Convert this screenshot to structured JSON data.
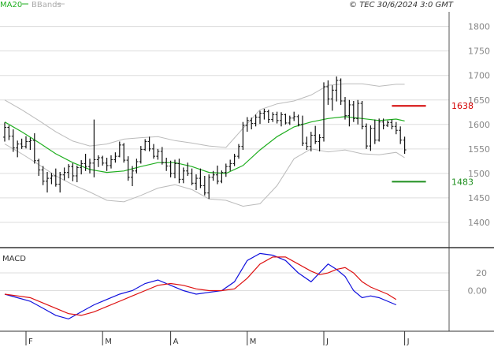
{
  "header": {
    "ma_label": "MA20",
    "bbands_label": "BBands",
    "copyright": "© TEC 30/6/2024 3:0 GMT"
  },
  "macd_label": "MACD",
  "colors": {
    "price": "#111111",
    "ma": "#1fae1f",
    "bbands": "#bbbbbb",
    "resistance": "#d40000",
    "support": "#1f8f1f",
    "macd": "#1010dd",
    "signal": "#dd1010",
    "grid": "#dddddd"
  },
  "chart_data": [
    {
      "type": "ohlc",
      "name": "price-panel",
      "ylim": [
        1350,
        1830
      ],
      "yticks": [
        1400,
        1450,
        1500,
        1550,
        1600,
        1650,
        1700,
        1750,
        1800
      ],
      "ytick_labels": [
        "1400",
        "1450",
        "1500",
        "1550",
        "1600",
        "1650",
        "1700",
        "1750",
        "1800"
      ],
      "xlim": [
        0,
        100
      ],
      "xticks": [
        {
          "x": 5,
          "label": "F"
        },
        {
          "x": 23,
          "label": "M"
        },
        {
          "x": 39,
          "label": "A"
        },
        {
          "x": 57,
          "label": "M"
        },
        {
          "x": 75,
          "label": "J"
        },
        {
          "x": 94,
          "label": "J"
        }
      ],
      "levels": [
        {
          "name": "resistance",
          "value": 1638,
          "label": "1638",
          "x_start": 91,
          "x_end": 99
        },
        {
          "name": "support",
          "value": 1483,
          "label": "1483",
          "x_start": 91,
          "x_end": 99
        }
      ],
      "bars": [
        [
          0,
          1574,
          1604,
          1565,
          1594
        ],
        [
          1,
          1594,
          1598,
          1568,
          1576
        ],
        [
          2,
          1576,
          1590,
          1544,
          1552
        ],
        [
          3,
          1552,
          1567,
          1533,
          1560
        ],
        [
          4,
          1560,
          1571,
          1550,
          1555
        ],
        [
          5,
          1555,
          1576,
          1551,
          1565
        ],
        [
          6,
          1565,
          1573,
          1548,
          1567
        ],
        [
          7,
          1567,
          1582,
          1520,
          1526
        ],
        [
          8,
          1526,
          1530,
          1495,
          1507
        ],
        [
          9,
          1507,
          1515,
          1476,
          1484
        ],
        [
          10,
          1484,
          1503,
          1461,
          1490
        ],
        [
          11,
          1490,
          1501,
          1478,
          1495
        ],
        [
          12,
          1495,
          1510,
          1473,
          1478
        ],
        [
          13,
          1478,
          1503,
          1461,
          1497
        ],
        [
          14,
          1497,
          1512,
          1486,
          1502
        ],
        [
          15,
          1502,
          1519,
          1490,
          1514
        ],
        [
          16,
          1514,
          1521,
          1484,
          1495
        ],
        [
          17,
          1495,
          1516,
          1482,
          1512
        ],
        [
          18,
          1512,
          1527,
          1498,
          1520
        ],
        [
          19,
          1520,
          1540,
          1505,
          1514
        ],
        [
          20,
          1514,
          1530,
          1500,
          1521
        ],
        [
          21,
          1521,
          1610,
          1492,
          1528
        ],
        [
          22,
          1528,
          1537,
          1513,
          1532
        ],
        [
          23,
          1532,
          1536,
          1516,
          1521
        ],
        [
          24,
          1521,
          1532,
          1505,
          1516
        ],
        [
          25,
          1516,
          1537,
          1510,
          1528
        ],
        [
          26,
          1528,
          1543,
          1522,
          1535
        ],
        [
          27,
          1535,
          1565,
          1533,
          1558
        ],
        [
          28,
          1558,
          1562,
          1522,
          1527
        ],
        [
          29,
          1527,
          1535,
          1485,
          1492
        ],
        [
          30,
          1492,
          1515,
          1474,
          1505
        ],
        [
          31,
          1505,
          1530,
          1500,
          1524
        ],
        [
          32,
          1524,
          1556,
          1520,
          1549
        ],
        [
          33,
          1549,
          1570,
          1546,
          1565
        ],
        [
          34,
          1565,
          1575,
          1545,
          1550
        ],
        [
          35,
          1550,
          1560,
          1530,
          1535
        ],
        [
          36,
          1535,
          1550,
          1528,
          1545
        ],
        [
          37,
          1545,
          1554,
          1518,
          1522
        ],
        [
          38,
          1522,
          1532,
          1505,
          1515
        ],
        [
          39,
          1515,
          1526,
          1492,
          1500
        ],
        [
          40,
          1500,
          1528,
          1490,
          1520
        ],
        [
          41,
          1520,
          1530,
          1480,
          1488
        ],
        [
          42,
          1488,
          1512,
          1480,
          1505
        ],
        [
          43,
          1505,
          1522,
          1495,
          1500
        ],
        [
          44,
          1500,
          1510,
          1476,
          1480
        ],
        [
          45,
          1480,
          1498,
          1466,
          1490
        ],
        [
          46,
          1490,
          1510,
          1470,
          1475
        ],
        [
          47,
          1475,
          1495,
          1455,
          1460
        ],
        [
          48,
          1460,
          1498,
          1448,
          1492
        ],
        [
          49,
          1492,
          1505,
          1485,
          1497
        ],
        [
          50,
          1497,
          1516,
          1478,
          1484
        ],
        [
          51,
          1484,
          1506,
          1480,
          1502
        ],
        [
          52,
          1502,
          1520,
          1493,
          1514
        ],
        [
          53,
          1514,
          1528,
          1505,
          1520
        ],
        [
          54,
          1520,
          1540,
          1515,
          1535
        ],
        [
          55,
          1535,
          1560,
          1530,
          1555
        ],
        [
          56,
          1555,
          1605,
          1548,
          1598
        ],
        [
          57,
          1598,
          1615,
          1585,
          1608
        ],
        [
          58,
          1608,
          1614,
          1590,
          1602
        ],
        [
          59,
          1602,
          1620,
          1596,
          1615
        ],
        [
          60,
          1615,
          1628,
          1601,
          1623
        ],
        [
          61,
          1623,
          1632,
          1610,
          1626
        ],
        [
          62,
          1626,
          1630,
          1603,
          1610
        ],
        [
          63,
          1610,
          1625,
          1605,
          1620
        ],
        [
          64,
          1620,
          1626,
          1602,
          1608
        ],
        [
          65,
          1608,
          1625,
          1596,
          1620
        ],
        [
          66,
          1620,
          1622,
          1600,
          1603
        ],
        [
          67,
          1603,
          1618,
          1599,
          1613
        ],
        [
          68,
          1613,
          1626,
          1607,
          1616
        ],
        [
          69,
          1616,
          1620,
          1596,
          1600
        ],
        [
          70,
          1600,
          1618,
          1556,
          1562
        ],
        [
          71,
          1562,
          1575,
          1548,
          1555
        ],
        [
          72,
          1555,
          1585,
          1545,
          1578
        ],
        [
          73,
          1578,
          1597,
          1560,
          1565
        ],
        [
          74,
          1565,
          1580,
          1545,
          1573
        ],
        [
          75,
          1573,
          1686,
          1565,
          1677
        ],
        [
          76,
          1677,
          1690,
          1640,
          1652
        ],
        [
          77,
          1652,
          1680,
          1628,
          1670
        ],
        [
          78,
          1670,
          1698,
          1647,
          1690
        ],
        [
          79,
          1690,
          1694,
          1640,
          1648
        ],
        [
          80,
          1648,
          1656,
          1610,
          1618
        ],
        [
          81,
          1618,
          1650,
          1596,
          1640
        ],
        [
          82,
          1640,
          1648,
          1605,
          1612
        ],
        [
          83,
          1612,
          1650,
          1600,
          1643
        ],
        [
          84,
          1643,
          1648,
          1590,
          1596
        ],
        [
          85,
          1596,
          1602,
          1550,
          1556
        ],
        [
          86,
          1556,
          1598,
          1546,
          1592
        ],
        [
          87,
          1592,
          1610,
          1560,
          1568
        ],
        [
          88,
          1568,
          1612,
          1565,
          1605
        ],
        [
          89,
          1605,
          1612,
          1590,
          1598
        ],
        [
          90,
          1598,
          1608,
          1595,
          1604
        ],
        [
          91,
          1604,
          1610,
          1590,
          1596
        ],
        [
          92,
          1596,
          1605,
          1580,
          1588
        ],
        [
          93,
          1588,
          1596,
          1560,
          1568
        ],
        [
          94,
          1568,
          1575,
          1540,
          1548
        ]
      ],
      "ma20": [
        [
          0,
          1605
        ],
        [
          4,
          1585
        ],
        [
          8,
          1563
        ],
        [
          12,
          1540
        ],
        [
          16,
          1522
        ],
        [
          20,
          1508
        ],
        [
          24,
          1502
        ],
        [
          28,
          1505
        ],
        [
          32,
          1514
        ],
        [
          36,
          1522
        ],
        [
          40,
          1522
        ],
        [
          44,
          1514
        ],
        [
          48,
          1502
        ],
        [
          52,
          1500
        ],
        [
          56,
          1516
        ],
        [
          60,
          1548
        ],
        [
          64,
          1575
        ],
        [
          68,
          1595
        ],
        [
          72,
          1605
        ],
        [
          76,
          1612
        ],
        [
          80,
          1616
        ],
        [
          84,
          1612
        ],
        [
          88,
          1608
        ],
        [
          92,
          1611
        ],
        [
          94,
          1607
        ]
      ],
      "bb_upper": [
        [
          0,
          1650
        ],
        [
          4,
          1630
        ],
        [
          8,
          1608
        ],
        [
          12,
          1585
        ],
        [
          16,
          1566
        ],
        [
          20,
          1556
        ],
        [
          24,
          1560
        ],
        [
          28,
          1570
        ],
        [
          32,
          1573
        ],
        [
          36,
          1575
        ],
        [
          40,
          1567
        ],
        [
          44,
          1562
        ],
        [
          48,
          1556
        ],
        [
          52,
          1553
        ],
        [
          56,
          1592
        ],
        [
          60,
          1630
        ],
        [
          64,
          1642
        ],
        [
          68,
          1648
        ],
        [
          72,
          1660
        ],
        [
          76,
          1680
        ],
        [
          80,
          1683
        ],
        [
          84,
          1683
        ],
        [
          88,
          1678
        ],
        [
          92,
          1682
        ],
        [
          94,
          1682
        ]
      ],
      "bb_lower": [
        [
          0,
          1560
        ],
        [
          4,
          1540
        ],
        [
          8,
          1518
        ],
        [
          12,
          1495
        ],
        [
          16,
          1477
        ],
        [
          20,
          1462
        ],
        [
          24,
          1445
        ],
        [
          28,
          1442
        ],
        [
          32,
          1455
        ],
        [
          36,
          1470
        ],
        [
          40,
          1477
        ],
        [
          44,
          1467
        ],
        [
          48,
          1448
        ],
        [
          52,
          1445
        ],
        [
          56,
          1433
        ],
        [
          60,
          1438
        ],
        [
          64,
          1475
        ],
        [
          68,
          1530
        ],
        [
          72,
          1550
        ],
        [
          76,
          1544
        ],
        [
          80,
          1548
        ],
        [
          84,
          1540
        ],
        [
          88,
          1538
        ],
        [
          92,
          1543
        ],
        [
          94,
          1532
        ]
      ]
    },
    {
      "type": "line",
      "name": "macd-panel",
      "ylim": [
        -45,
        45
      ],
      "yticks": [
        0,
        20
      ],
      "ytick_labels": [
        "0.00",
        "20"
      ],
      "series": [
        {
          "name": "macd",
          "color": "#1010dd",
          "points": [
            [
              0,
              -4
            ],
            [
              3,
              -8
            ],
            [
              6,
              -12
            ],
            [
              9,
              -20
            ],
            [
              12,
              -28
            ],
            [
              15,
              -32
            ],
            [
              18,
              -24
            ],
            [
              21,
              -16
            ],
            [
              24,
              -10
            ],
            [
              27,
              -4
            ],
            [
              30,
              0
            ],
            [
              33,
              8
            ],
            [
              36,
              12
            ],
            [
              39,
              6
            ],
            [
              42,
              0
            ],
            [
              45,
              -4
            ],
            [
              48,
              -2
            ],
            [
              51,
              0
            ],
            [
              54,
              10
            ],
            [
              57,
              34
            ],
            [
              60,
              42
            ],
            [
              63,
              40
            ],
            [
              66,
              34
            ],
            [
              69,
              20
            ],
            [
              72,
              10
            ],
            [
              74,
              20
            ],
            [
              76,
              30
            ],
            [
              78,
              24
            ],
            [
              80,
              16
            ],
            [
              82,
              0
            ],
            [
              84,
              -8
            ],
            [
              86,
              -6
            ],
            [
              88,
              -8
            ],
            [
              90,
              -12
            ],
            [
              92,
              -16
            ]
          ]
        },
        {
          "name": "signal",
          "color": "#dd1010",
          "points": [
            [
              0,
              -4
            ],
            [
              3,
              -6
            ],
            [
              6,
              -8
            ],
            [
              9,
              -14
            ],
            [
              12,
              -20
            ],
            [
              15,
              -26
            ],
            [
              18,
              -28
            ],
            [
              21,
              -24
            ],
            [
              24,
              -18
            ],
            [
              27,
              -12
            ],
            [
              30,
              -6
            ],
            [
              33,
              0
            ],
            [
              36,
              6
            ],
            [
              39,
              8
            ],
            [
              42,
              6
            ],
            [
              45,
              2
            ],
            [
              48,
              0
            ],
            [
              51,
              0
            ],
            [
              54,
              2
            ],
            [
              57,
              14
            ],
            [
              60,
              30
            ],
            [
              63,
              38
            ],
            [
              66,
              38
            ],
            [
              69,
              30
            ],
            [
              72,
              22
            ],
            [
              74,
              18
            ],
            [
              76,
              20
            ],
            [
              78,
              24
            ],
            [
              80,
              26
            ],
            [
              82,
              20
            ],
            [
              84,
              10
            ],
            [
              86,
              4
            ],
            [
              88,
              0
            ],
            [
              90,
              -4
            ],
            [
              92,
              -10
            ]
          ]
        }
      ]
    }
  ]
}
